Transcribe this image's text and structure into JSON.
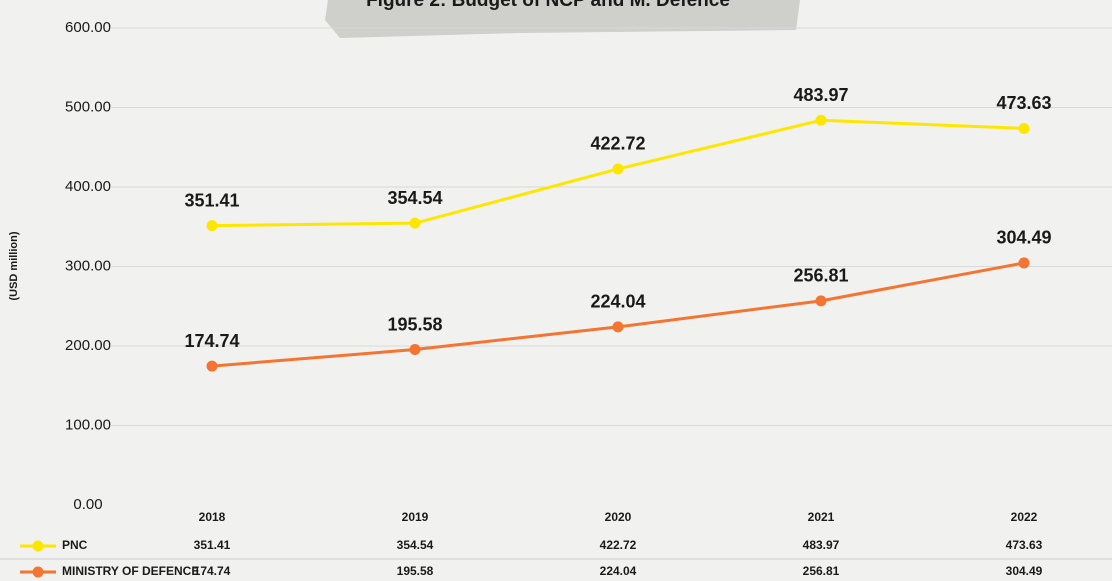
{
  "chart_data": {
    "type": "line",
    "title": "Figure 2: Budget of NCP and M. Defence",
    "y_label": "(USD million)",
    "categories": [
      "2018",
      "2019",
      "2020",
      "2021",
      "2022"
    ],
    "series": [
      {
        "name": "PNC",
        "color": "#ffe600",
        "values": [
          351.41,
          354.54,
          422.72,
          483.97,
          473.63
        ]
      },
      {
        "name": "MINISTRY OF DEFENCE",
        "color": "#f47431",
        "values": [
          174.74,
          195.58,
          224.04,
          256.81,
          304.49
        ]
      }
    ],
    "ylim": [
      0,
      600
    ],
    "yticks": [
      {
        "value": 0,
        "label": "0.00"
      },
      {
        "value": 100,
        "label": "100.00"
      },
      {
        "value": 200,
        "label": "200.00"
      },
      {
        "value": 300,
        "label": "300.00"
      },
      {
        "value": 400,
        "label": "400.00"
      },
      {
        "value": 500,
        "label": "500.00"
      },
      {
        "value": 600,
        "label": "600.00"
      }
    ],
    "grid": true
  }
}
